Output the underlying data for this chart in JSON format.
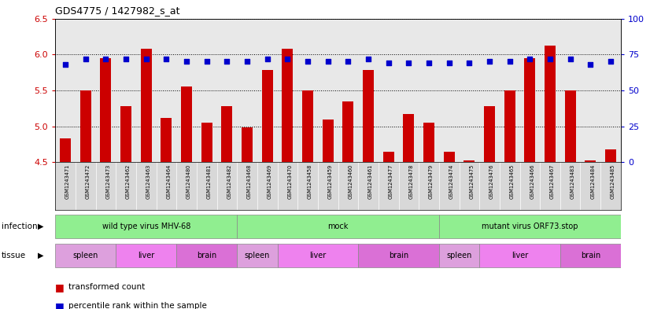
{
  "title": "GDS4775 / 1427982_s_at",
  "samples": [
    "GSM1243471",
    "GSM1243472",
    "GSM1243473",
    "GSM1243462",
    "GSM1243463",
    "GSM1243464",
    "GSM1243480",
    "GSM1243481",
    "GSM1243482",
    "GSM1243468",
    "GSM1243469",
    "GSM1243470",
    "GSM1243458",
    "GSM1243459",
    "GSM1243460",
    "GSM1243461",
    "GSM1243477",
    "GSM1243478",
    "GSM1243479",
    "GSM1243474",
    "GSM1243475",
    "GSM1243476",
    "GSM1243465",
    "GSM1243466",
    "GSM1243467",
    "GSM1243483",
    "GSM1243484",
    "GSM1243485"
  ],
  "bar_values": [
    4.83,
    5.5,
    5.95,
    5.28,
    6.08,
    5.12,
    5.55,
    5.05,
    5.28,
    4.98,
    5.78,
    6.08,
    5.5,
    5.1,
    5.35,
    5.78,
    4.65,
    5.17,
    5.05,
    4.65,
    4.52,
    5.28,
    5.5,
    5.95,
    6.12,
    5.5,
    4.52,
    4.68
  ],
  "percentile_values": [
    68,
    72,
    72,
    72,
    72,
    72,
    70,
    70,
    70,
    70,
    72,
    72,
    70,
    70,
    70,
    72,
    69,
    69,
    69,
    69,
    69,
    70,
    70,
    72,
    72,
    72,
    68,
    70
  ],
  "ylim_left": [
    4.5,
    6.5
  ],
  "ylim_right": [
    0,
    100
  ],
  "yticks_left": [
    4.5,
    5.0,
    5.5,
    6.0,
    6.5
  ],
  "yticks_right": [
    0,
    25,
    50,
    75,
    100
  ],
  "bar_color": "#CC0000",
  "dot_color": "#0000CC",
  "background_color": "#ffffff",
  "label_bg_color": "#d8d8d8",
  "infection_groups": [
    {
      "label": "wild type virus MHV-68",
      "start": 0,
      "end": 9,
      "color": "#90EE90"
    },
    {
      "label": "mock",
      "start": 9,
      "end": 19,
      "color": "#90EE90"
    },
    {
      "label": "mutant virus ORF73.stop",
      "start": 19,
      "end": 28,
      "color": "#90EE90"
    }
  ],
  "tissue_groups": [
    {
      "label": "spleen",
      "start": 0,
      "end": 3,
      "color": "#DDA0DD"
    },
    {
      "label": "liver",
      "start": 3,
      "end": 6,
      "color": "#EE82EE"
    },
    {
      "label": "brain",
      "start": 6,
      "end": 9,
      "color": "#DA70D6"
    },
    {
      "label": "spleen",
      "start": 9,
      "end": 11,
      "color": "#DDA0DD"
    },
    {
      "label": "liver",
      "start": 11,
      "end": 15,
      "color": "#EE82EE"
    },
    {
      "label": "brain",
      "start": 15,
      "end": 19,
      "color": "#DA70D6"
    },
    {
      "label": "spleen",
      "start": 19,
      "end": 21,
      "color": "#DDA0DD"
    },
    {
      "label": "liver",
      "start": 21,
      "end": 25,
      "color": "#EE82EE"
    },
    {
      "label": "brain",
      "start": 25,
      "end": 28,
      "color": "#DA70D6"
    }
  ]
}
